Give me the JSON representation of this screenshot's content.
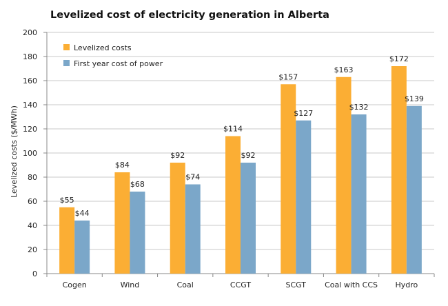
{
  "chart_data": {
    "type": "bar",
    "title": "Levelized cost of electricity generation in Alberta",
    "xlabel": "",
    "ylabel": "Levelized costs ($/MWh)",
    "ylim": [
      0,
      200
    ],
    "yticks": [
      0,
      20,
      40,
      60,
      80,
      100,
      120,
      140,
      160,
      180,
      200
    ],
    "grid": true,
    "legend_position": "top-left",
    "categories": [
      "Cogen",
      "Wind",
      "Coal",
      "CCGT",
      "SCGT",
      "Coal with CCS",
      "Hydro"
    ],
    "series": [
      {
        "name": "Levelized costs",
        "color": "#FBAE34",
        "values": [
          55,
          84,
          92,
          114,
          157,
          163,
          172
        ],
        "labels": [
          "$55",
          "$84",
          "$92",
          "$114",
          "$157",
          "$163",
          "$172"
        ]
      },
      {
        "name": "First year cost of power",
        "color": "#7BA7C9",
        "values": [
          44,
          68,
          74,
          92,
          127,
          132,
          139
        ],
        "labels": [
          "$44",
          "$68",
          "$74",
          "$92",
          "$127",
          "$132",
          "$139"
        ]
      }
    ]
  }
}
